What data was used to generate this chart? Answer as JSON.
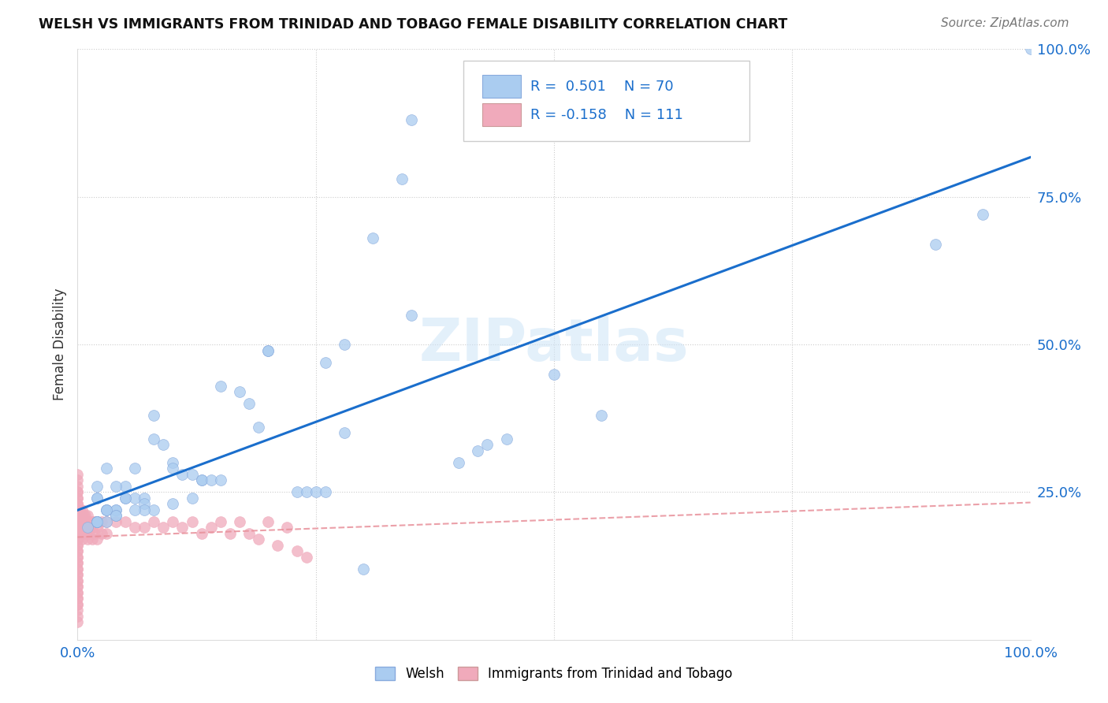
{
  "title": "WELSH VS IMMIGRANTS FROM TRINIDAD AND TOBAGO FEMALE DISABILITY CORRELATION CHART",
  "source": "Source: ZipAtlas.com",
  "ylabel": "Female Disability",
  "xlim": [
    0,
    1.0
  ],
  "ylim": [
    0,
    1.0
  ],
  "welsh_R": 0.501,
  "welsh_N": 70,
  "tt_R": -0.158,
  "tt_N": 111,
  "welsh_color": "#aaccf0",
  "tt_color": "#f0aabb",
  "welsh_line_color": "#1a6ecc",
  "tt_line_color": "#e8909a",
  "watermark": "ZIPatlas",
  "welsh_x": [
    0.35,
    0.34,
    0.31,
    0.28,
    0.26,
    0.15,
    0.17,
    0.18,
    0.19,
    0.09,
    0.1,
    0.1,
    0.11,
    0.12,
    0.13,
    0.13,
    0.14,
    0.05,
    0.06,
    0.07,
    0.07,
    0.03,
    0.03,
    0.04,
    0.04,
    0.04,
    0.02,
    0.02,
    0.02,
    0.02,
    0.02,
    0.23,
    0.24,
    0.25,
    0.26,
    0.4,
    0.42,
    0.43,
    0.45,
    0.55,
    0.9,
    0.95,
    1.0,
    0.5,
    0.3,
    0.2,
    0.2,
    0.08,
    0.08,
    0.06,
    0.05,
    0.05,
    0.04,
    0.03,
    0.03,
    0.02,
    0.02,
    0.02,
    0.35,
    0.28,
    0.15,
    0.12,
    0.1,
    0.08,
    0.07,
    0.06,
    0.04,
    0.03,
    0.02,
    0.01
  ],
  "welsh_y": [
    0.88,
    0.78,
    0.68,
    0.5,
    0.47,
    0.43,
    0.42,
    0.4,
    0.36,
    0.33,
    0.3,
    0.29,
    0.28,
    0.28,
    0.27,
    0.27,
    0.27,
    0.24,
    0.24,
    0.24,
    0.23,
    0.22,
    0.22,
    0.22,
    0.22,
    0.21,
    0.2,
    0.2,
    0.2,
    0.2,
    0.2,
    0.25,
    0.25,
    0.25,
    0.25,
    0.3,
    0.32,
    0.33,
    0.34,
    0.38,
    0.67,
    0.72,
    1.0,
    0.45,
    0.12,
    0.49,
    0.49,
    0.34,
    0.38,
    0.29,
    0.24,
    0.26,
    0.26,
    0.29,
    0.22,
    0.24,
    0.24,
    0.26,
    0.55,
    0.35,
    0.27,
    0.24,
    0.23,
    0.22,
    0.22,
    0.22,
    0.21,
    0.2,
    0.2,
    0.19
  ],
  "tt_x_dense": [
    0.0,
    0.0,
    0.0,
    0.0,
    0.0,
    0.0,
    0.0,
    0.0,
    0.0,
    0.0,
    0.0,
    0.0,
    0.0,
    0.0,
    0.0,
    0.0,
    0.0,
    0.0,
    0.0,
    0.0,
    0.002,
    0.002,
    0.002,
    0.002,
    0.002,
    0.003,
    0.003,
    0.003,
    0.003,
    0.004,
    0.004,
    0.004,
    0.005,
    0.005,
    0.005,
    0.005,
    0.005,
    0.005,
    0.006,
    0.006,
    0.006,
    0.007,
    0.007,
    0.007,
    0.008,
    0.008,
    0.008,
    0.009,
    0.009,
    0.01,
    0.01,
    0.01,
    0.01,
    0.01,
    0.012,
    0.012,
    0.012,
    0.015,
    0.015,
    0.015,
    0.018,
    0.018,
    0.02,
    0.02,
    0.02,
    0.025,
    0.025,
    0.03,
    0.03,
    0.04,
    0.05,
    0.06,
    0.07,
    0.08,
    0.09,
    0.1,
    0.11,
    0.12,
    0.13,
    0.14,
    0.15,
    0.16,
    0.17,
    0.18,
    0.19,
    0.2,
    0.21,
    0.22,
    0.23,
    0.24,
    0.0,
    0.0,
    0.0,
    0.0,
    0.0,
    0.0,
    0.0,
    0.0,
    0.0,
    0.0,
    0.0,
    0.0,
    0.0,
    0.0,
    0.0,
    0.0,
    0.0,
    0.0,
    0.0,
    0.0,
    0.0
  ],
  "tt_y_dense": [
    0.2,
    0.19,
    0.18,
    0.17,
    0.16,
    0.15,
    0.14,
    0.13,
    0.12,
    0.11,
    0.1,
    0.09,
    0.08,
    0.22,
    0.21,
    0.23,
    0.24,
    0.25,
    0.07,
    0.06,
    0.22,
    0.21,
    0.2,
    0.19,
    0.18,
    0.21,
    0.2,
    0.19,
    0.18,
    0.2,
    0.19,
    0.18,
    0.22,
    0.21,
    0.2,
    0.19,
    0.18,
    0.17,
    0.21,
    0.2,
    0.19,
    0.2,
    0.19,
    0.18,
    0.21,
    0.2,
    0.19,
    0.2,
    0.19,
    0.21,
    0.2,
    0.19,
    0.18,
    0.17,
    0.2,
    0.19,
    0.18,
    0.2,
    0.19,
    0.17,
    0.2,
    0.18,
    0.2,
    0.19,
    0.17,
    0.2,
    0.18,
    0.2,
    0.18,
    0.2,
    0.2,
    0.19,
    0.19,
    0.2,
    0.19,
    0.2,
    0.19,
    0.2,
    0.18,
    0.19,
    0.2,
    0.18,
    0.2,
    0.18,
    0.17,
    0.2,
    0.16,
    0.19,
    0.15,
    0.14,
    0.05,
    0.06,
    0.07,
    0.08,
    0.09,
    0.1,
    0.11,
    0.12,
    0.13,
    0.04,
    0.03,
    0.25,
    0.24,
    0.23,
    0.26,
    0.27,
    0.28,
    0.16,
    0.15,
    0.17,
    0.14
  ]
}
